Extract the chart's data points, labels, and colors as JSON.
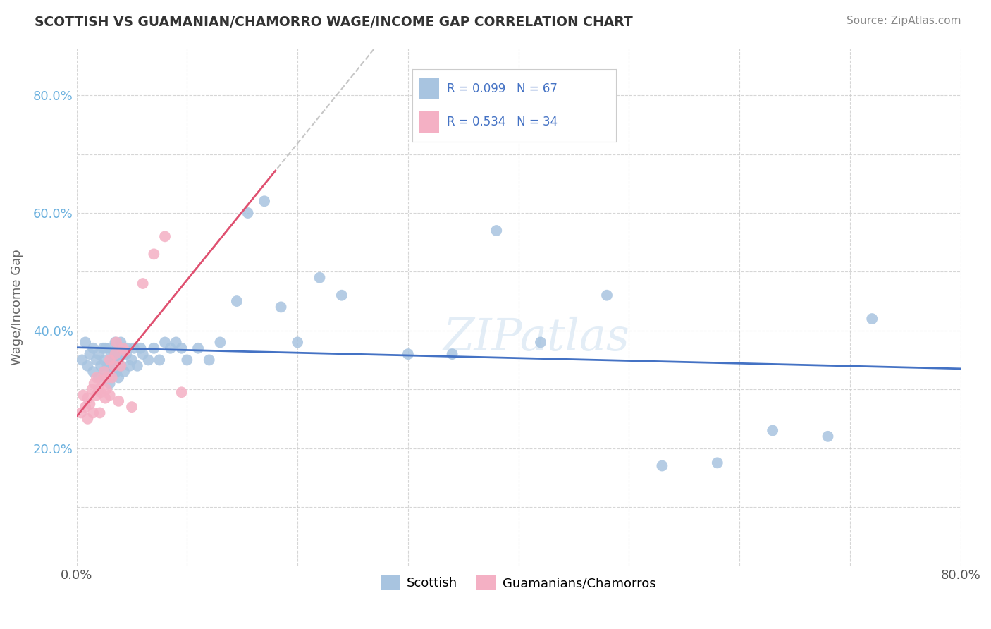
{
  "title": "SCOTTISH VS GUAMANIAN/CHAMORRO WAGE/INCOME GAP CORRELATION CHART",
  "source": "Source: ZipAtlas.com",
  "ylabel": "Wage/Income Gap",
  "xlim": [
    0.0,
    0.8
  ],
  "ylim": [
    0.0,
    0.88
  ],
  "scottish_color": "#a8c4e0",
  "guam_color": "#f4b0c4",
  "scottish_line_color": "#4472c4",
  "guam_line_color": "#e05070",
  "guam_line_dashed_color": "#b0b0b0",
  "background_color": "#ffffff",
  "grid_color": "#cccccc",
  "watermark": "ZIPatlas",
  "scottish_x": [
    0.005,
    0.008,
    0.01,
    0.012,
    0.015,
    0.015,
    0.018,
    0.02,
    0.02,
    0.022,
    0.024,
    0.025,
    0.025,
    0.026,
    0.028,
    0.03,
    0.03,
    0.03,
    0.032,
    0.033,
    0.034,
    0.035,
    0.035,
    0.036,
    0.037,
    0.038,
    0.038,
    0.04,
    0.04,
    0.042,
    0.043,
    0.045,
    0.046,
    0.048,
    0.05,
    0.052,
    0.055,
    0.058,
    0.06,
    0.065,
    0.07,
    0.075,
    0.08,
    0.085,
    0.09,
    0.095,
    0.1,
    0.11,
    0.12,
    0.13,
    0.145,
    0.155,
    0.17,
    0.185,
    0.2,
    0.22,
    0.24,
    0.3,
    0.34,
    0.38,
    0.42,
    0.48,
    0.53,
    0.58,
    0.63,
    0.68,
    0.72
  ],
  "scottish_y": [
    0.35,
    0.38,
    0.34,
    0.36,
    0.33,
    0.37,
    0.35,
    0.32,
    0.36,
    0.34,
    0.37,
    0.33,
    0.35,
    0.37,
    0.34,
    0.31,
    0.34,
    0.37,
    0.36,
    0.33,
    0.35,
    0.36,
    0.38,
    0.33,
    0.35,
    0.32,
    0.35,
    0.34,
    0.38,
    0.36,
    0.33,
    0.36,
    0.37,
    0.34,
    0.35,
    0.37,
    0.34,
    0.37,
    0.36,
    0.35,
    0.37,
    0.35,
    0.38,
    0.37,
    0.38,
    0.37,
    0.35,
    0.37,
    0.35,
    0.38,
    0.45,
    0.6,
    0.62,
    0.44,
    0.38,
    0.49,
    0.46,
    0.36,
    0.36,
    0.57,
    0.38,
    0.46,
    0.17,
    0.175,
    0.23,
    0.22,
    0.42
  ],
  "guam_x": [
    0.004,
    0.006,
    0.008,
    0.01,
    0.01,
    0.012,
    0.014,
    0.015,
    0.016,
    0.018,
    0.018,
    0.02,
    0.021,
    0.022,
    0.023,
    0.025,
    0.026,
    0.027,
    0.028,
    0.03,
    0.03,
    0.032,
    0.034,
    0.035,
    0.036,
    0.038,
    0.04,
    0.042,
    0.044,
    0.05,
    0.06,
    0.07,
    0.08,
    0.095
  ],
  "guam_y": [
    0.26,
    0.29,
    0.27,
    0.25,
    0.285,
    0.275,
    0.3,
    0.26,
    0.31,
    0.29,
    0.32,
    0.3,
    0.26,
    0.295,
    0.315,
    0.33,
    0.285,
    0.3,
    0.32,
    0.29,
    0.35,
    0.32,
    0.34,
    0.36,
    0.38,
    0.28,
    0.34,
    0.37,
    0.365,
    0.27,
    0.48,
    0.53,
    0.56,
    0.295
  ]
}
